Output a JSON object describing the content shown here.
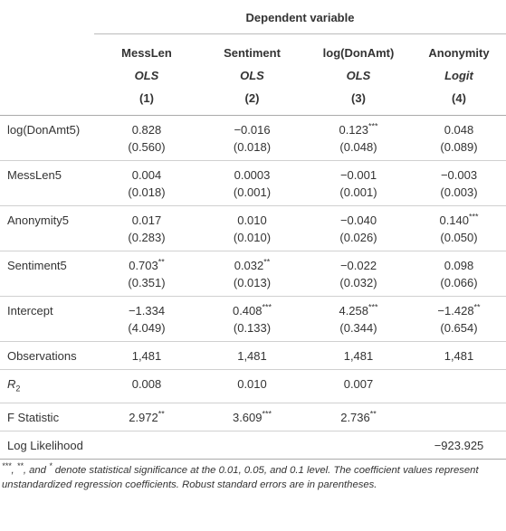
{
  "header": {
    "title": "Dependent variable"
  },
  "columns": [
    {
      "name": "MessLen",
      "method": "OLS",
      "number": "(1)"
    },
    {
      "name": "Sentiment",
      "method": "OLS",
      "number": "(2)"
    },
    {
      "name": "log(DonAmt)",
      "method": "OLS",
      "number": "(3)"
    },
    {
      "name": "Anonymity",
      "method": "Logit",
      "number": "(4)"
    }
  ],
  "rows": [
    {
      "label": "log(DonAmt5)",
      "cells": [
        {
          "v": "0.828",
          "se": "(0.560)"
        },
        {
          "v": "−0.016",
          "se": "(0.018)"
        },
        {
          "v": "0.123",
          "stars": "***",
          "se": "(0.048)"
        },
        {
          "v": "0.048",
          "se": "(0.089)"
        }
      ]
    },
    {
      "label": "MessLen5",
      "cells": [
        {
          "v": "0.004",
          "se": "(0.018)"
        },
        {
          "v": "0.0003",
          "se": "(0.001)"
        },
        {
          "v": "−0.001",
          "se": "(0.001)"
        },
        {
          "v": "−0.003",
          "se": "(0.003)"
        }
      ]
    },
    {
      "label": "Anonymity5",
      "cells": [
        {
          "v": "0.017",
          "se": "(0.283)"
        },
        {
          "v": "0.010",
          "se": "(0.010)"
        },
        {
          "v": "−0.040",
          "se": "(0.026)"
        },
        {
          "v": "0.140",
          "stars": "***",
          "se": "(0.050)"
        }
      ]
    },
    {
      "label": "Sentiment5",
      "cells": [
        {
          "v": "0.703",
          "stars": "**",
          "se": "(0.351)"
        },
        {
          "v": "0.032",
          "stars": "**",
          "se": "(0.013)"
        },
        {
          "v": "−0.022",
          "se": "(0.032)"
        },
        {
          "v": "0.098",
          "se": "(0.066)"
        }
      ]
    },
    {
      "label": "Intercept",
      "cells": [
        {
          "v": "−1.334",
          "se": "(4.049)"
        },
        {
          "v": "0.408",
          "stars": "***",
          "se": "(0.133)"
        },
        {
          "v": "4.258",
          "stars": "***",
          "se": "(0.344)"
        },
        {
          "v": "−1.428",
          "stars": "**",
          "se": "(0.654)"
        }
      ]
    },
    {
      "label": "Observations",
      "cells": [
        {
          "v": "1,481"
        },
        {
          "v": "1,481"
        },
        {
          "v": "1,481"
        },
        {
          "v": "1,481"
        }
      ]
    },
    {
      "label": "R",
      "label_sub": "2",
      "cells": [
        {
          "v": "0.008"
        },
        {
          "v": "0.010"
        },
        {
          "v": "0.007"
        },
        null
      ]
    },
    {
      "label": "F Statistic",
      "cells": [
        {
          "v": "2.972",
          "stars": "**"
        },
        {
          "v": "3.609",
          "stars": "***"
        },
        {
          "v": "2.736",
          "stars": "**"
        },
        null
      ]
    },
    {
      "label": "Log Likelihood",
      "cells": [
        null,
        null,
        null,
        {
          "v": "−923.925"
        }
      ]
    }
  ],
  "footnote": [
    {
      "sup": "***"
    },
    {
      "text": ", "
    },
    {
      "sup": "**"
    },
    {
      "text": ", and "
    },
    {
      "sup": "*"
    },
    {
      "text": " denote statistical significance at the 0.01, 0.05, and 0.1 level. The coefficient values represent unstandardized regression coefficients. Robust standard errors are in parentheses."
    }
  ]
}
